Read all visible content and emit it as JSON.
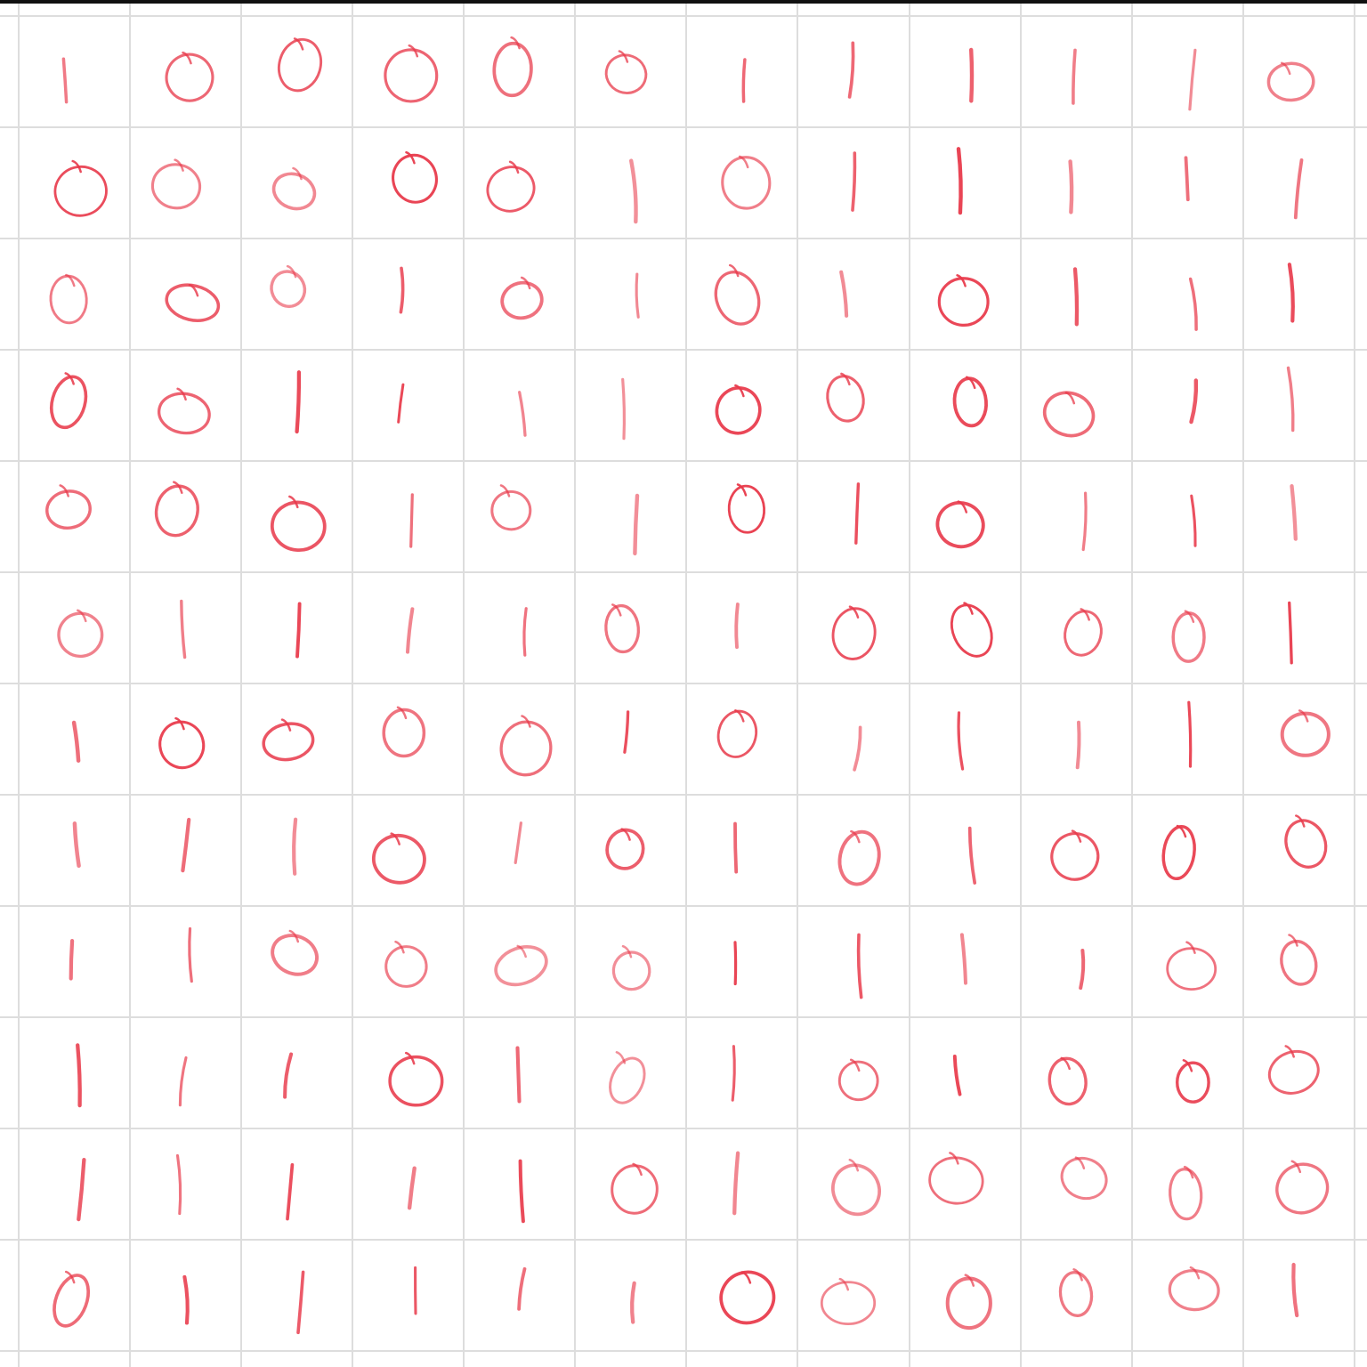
{
  "colors": {
    "background": "#ffffff",
    "grid_line": "#dddddd",
    "top_rule": "#111111",
    "crayon": "#e8394a"
  },
  "grid": {
    "rows": 12,
    "columns": 12,
    "symbols": [
      [
        "1",
        "0",
        "0",
        "0",
        "0",
        "0",
        "1",
        "1",
        "1",
        "1",
        "1",
        "0"
      ],
      [
        "0",
        "0",
        "0",
        "0",
        "0",
        "1",
        "0",
        "1",
        "1",
        "1",
        "1",
        "1"
      ],
      [
        "0",
        "0",
        "0",
        "1",
        "0",
        "1",
        "0",
        "1",
        "0",
        "1",
        "1",
        "1"
      ],
      [
        "0",
        "0",
        "1",
        "1",
        "1",
        "1",
        "0",
        "0",
        "0",
        "0",
        "1",
        "1"
      ],
      [
        "0",
        "0",
        "0",
        "1",
        "0",
        "1",
        "0",
        "1",
        "0",
        "1",
        "1",
        "1"
      ],
      [
        "0",
        "1",
        "1",
        "1",
        "1",
        "0",
        "1",
        "0",
        "0",
        "0",
        "0",
        "1"
      ],
      [
        "1",
        "0",
        "0",
        "0",
        "0",
        "1",
        "0",
        "1",
        "1",
        "1",
        "1",
        "0"
      ],
      [
        "1",
        "1",
        "1",
        "0",
        "1",
        "0",
        "1",
        "0",
        "1",
        "0",
        "0",
        "0"
      ],
      [
        "1",
        "1",
        "0",
        "0",
        "0",
        "0",
        "1",
        "1",
        "1",
        "1",
        "0",
        "0"
      ],
      [
        "1",
        "1",
        "1",
        "0",
        "1",
        "0",
        "1",
        "0",
        "1",
        "0",
        "0",
        "0"
      ],
      [
        "1",
        "1",
        "1",
        "1",
        "1",
        "0",
        "1",
        "0",
        "0",
        "0",
        "0",
        "0"
      ],
      [
        "0",
        "1",
        "1",
        "1",
        "1",
        "1",
        "0",
        "0",
        "0",
        "0",
        "0",
        "1"
      ]
    ]
  }
}
